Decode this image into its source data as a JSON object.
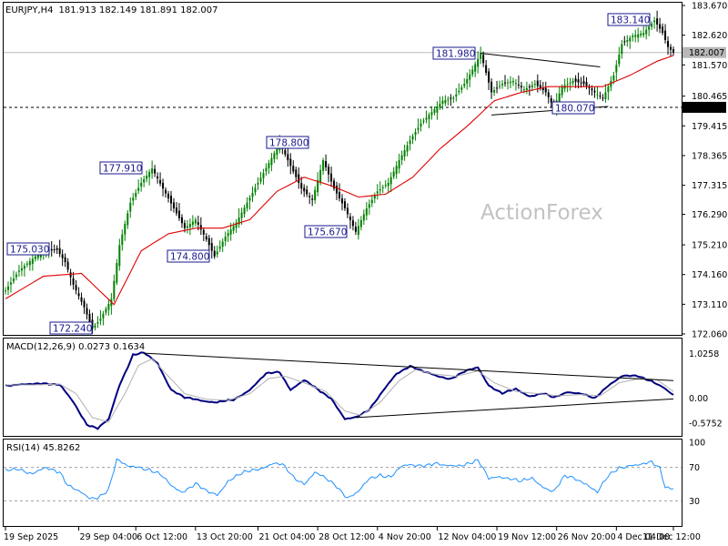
{
  "header": {
    "title": "EURJPY,H4",
    "ohlc": "181.913 182.149 181.891 182.007",
    "macd": "MACD(12,26,9) 0.0273 0.1634",
    "rsi": "RSI(14) 45.8262"
  },
  "watermark": "ActionForex",
  "colors": {
    "bull": "#008000",
    "bear": "#000000",
    "ma": "#e00000",
    "macd": "#000080",
    "signal": "#b0b0b0",
    "rsi": "#1e90ff",
    "label_border": "#1a1a8c"
  },
  "chart_data": [
    {
      "type": "candlestick",
      "title": "EURJPY,H4",
      "yticks": [
        "183.670",
        "182.620",
        "181.570",
        "180.465",
        "179.415",
        "178.365",
        "177.315",
        "176.290",
        "175.210",
        "174.160",
        "173.110",
        "172.060"
      ],
      "ylim": [
        172.06,
        183.67
      ],
      "current_price": "182.007",
      "level_line": "180.070",
      "annotations": [
        {
          "text": "183.140",
          "value": 183.14
        },
        {
          "text": "181.980",
          "value": 181.98
        },
        {
          "text": "180.070",
          "value": 180.07
        },
        {
          "text": "178.800",
          "value": 178.8
        },
        {
          "text": "177.910",
          "value": 177.91
        },
        {
          "text": "175.670",
          "value": 175.67
        },
        {
          "text": "175.030",
          "value": 175.03
        },
        {
          "text": "174.800",
          "value": 174.8
        },
        {
          "text": "172.240",
          "value": 172.24
        }
      ],
      "series_path": [
        [
          0,
          173.6
        ],
        [
          5,
          174.3
        ],
        [
          11,
          174.8
        ],
        [
          16,
          175.0
        ],
        [
          19,
          175.03
        ],
        [
          22,
          174.6
        ],
        [
          25,
          173.8
        ],
        [
          29,
          173.0
        ],
        [
          32,
          172.24
        ],
        [
          35,
          172.6
        ],
        [
          39,
          173.3
        ],
        [
          42,
          175.2
        ],
        [
          46,
          176.7
        ],
        [
          50,
          177.4
        ],
        [
          54,
          177.91
        ],
        [
          58,
          177.2
        ],
        [
          62,
          176.5
        ],
        [
          66,
          175.8
        ],
        [
          70,
          176.1
        ],
        [
          74,
          175.4
        ],
        [
          77,
          174.8
        ],
        [
          81,
          175.5
        ],
        [
          85,
          176.0
        ],
        [
          89,
          176.7
        ],
        [
          93,
          177.4
        ],
        [
          97,
          178.1
        ],
        [
          101,
          178.8
        ],
        [
          105,
          178.0
        ],
        [
          109,
          177.2
        ],
        [
          113,
          176.8
        ],
        [
          117,
          178.2
        ],
        [
          121,
          177.2
        ],
        [
          125,
          176.5
        ],
        [
          129,
          175.67
        ],
        [
          133,
          176.5
        ],
        [
          137,
          177.1
        ],
        [
          141,
          177.4
        ],
        [
          145,
          178.2
        ],
        [
          149,
          178.9
        ],
        [
          153,
          179.5
        ],
        [
          157,
          179.9
        ],
        [
          161,
          180.3
        ],
        [
          165,
          180.4
        ],
        [
          169,
          180.9
        ],
        [
          172,
          181.4
        ],
        [
          175,
          181.98
        ],
        [
          179,
          180.6
        ],
        [
          183,
          180.9
        ],
        [
          187,
          181.0
        ],
        [
          191,
          180.7
        ],
        [
          195,
          180.9
        ],
        [
          199,
          180.6
        ],
        [
          202,
          180.07
        ],
        [
          205,
          180.8
        ],
        [
          209,
          181.0
        ],
        [
          213,
          180.9
        ],
        [
          217,
          180.6
        ],
        [
          220,
          180.4
        ],
        [
          224,
          181.2
        ],
        [
          227,
          182.3
        ],
        [
          231,
          182.6
        ],
        [
          235,
          182.7
        ],
        [
          239,
          183.14
        ],
        [
          242,
          182.7
        ],
        [
          244,
          182.2
        ],
        [
          246,
          182.007
        ]
      ],
      "ma_path": [
        [
          0,
          173.3
        ],
        [
          14,
          174.1
        ],
        [
          28,
          174.2
        ],
        [
          40,
          173.1
        ],
        [
          50,
          175.0
        ],
        [
          60,
          175.6
        ],
        [
          70,
          175.8
        ],
        [
          80,
          175.8
        ],
        [
          90,
          176.1
        ],
        [
          100,
          177.1
        ],
        [
          110,
          177.6
        ],
        [
          120,
          177.3
        ],
        [
          130,
          176.9
        ],
        [
          140,
          177.0
        ],
        [
          150,
          177.6
        ],
        [
          160,
          178.6
        ],
        [
          170,
          179.4
        ],
        [
          180,
          180.3
        ],
        [
          190,
          180.6
        ],
        [
          200,
          180.8
        ],
        [
          210,
          180.8
        ],
        [
          220,
          180.8
        ],
        [
          230,
          181.2
        ],
        [
          240,
          181.7
        ],
        [
          246,
          181.9
        ]
      ],
      "trendlines": [
        {
          "from": [
            175,
            181.98
          ],
          "to": [
            219,
            181.5
          ]
        },
        {
          "from": [
            179,
            179.8
          ],
          "to": [
            222,
            180.1
          ]
        }
      ]
    },
    {
      "type": "line",
      "title": "MACD(12,26,9) 0.0273 0.1634",
      "yticks": [
        "1.0258",
        "0.00",
        "-0.5752"
      ],
      "ylim": [
        -0.85,
        1.2
      ],
      "series": [
        {
          "name": "MACD",
          "path": [
            [
              0,
              0.3
            ],
            [
              8,
              0.3
            ],
            [
              14,
              0.35
            ],
            [
              20,
              0.3
            ],
            [
              25,
              -0.1
            ],
            [
              30,
              -0.6
            ],
            [
              34,
              -0.7
            ],
            [
              38,
              -0.5
            ],
            [
              42,
              0.3
            ],
            [
              47,
              1.0
            ],
            [
              51,
              1.03
            ],
            [
              56,
              0.8
            ],
            [
              61,
              0.2
            ],
            [
              66,
              0.0
            ],
            [
              72,
              -0.05
            ],
            [
              78,
              -0.1
            ],
            [
              84,
              -0.05
            ],
            [
              90,
              0.2
            ],
            [
              96,
              0.55
            ],
            [
              101,
              0.6
            ],
            [
              105,
              0.2
            ],
            [
              110,
              0.4
            ],
            [
              115,
              0.2
            ],
            [
              120,
              0.0
            ],
            [
              125,
              -0.5
            ],
            [
              129,
              -0.45
            ],
            [
              134,
              -0.25
            ],
            [
              139,
              0.15
            ],
            [
              144,
              0.55
            ],
            [
              149,
              0.75
            ],
            [
              154,
              0.6
            ],
            [
              159,
              0.5
            ],
            [
              164,
              0.45
            ],
            [
              169,
              0.6
            ],
            [
              174,
              0.7
            ],
            [
              178,
              0.3
            ],
            [
              183,
              0.1
            ],
            [
              188,
              0.2
            ],
            [
              193,
              0.05
            ],
            [
              198,
              0.1
            ],
            [
              202,
              0.0
            ],
            [
              207,
              0.15
            ],
            [
              212,
              0.1
            ],
            [
              217,
              -0.02
            ],
            [
              222,
              0.3
            ],
            [
              227,
              0.5
            ],
            [
              233,
              0.5
            ],
            [
              238,
              0.4
            ],
            [
              242,
              0.25
            ],
            [
              246,
              0.05
            ]
          ]
        },
        {
          "name": "Signal",
          "path": [
            [
              0,
              0.3
            ],
            [
              10,
              0.3
            ],
            [
              20,
              0.32
            ],
            [
              26,
              0.1
            ],
            [
              32,
              -0.45
            ],
            [
              38,
              -0.55
            ],
            [
              44,
              0.1
            ],
            [
              49,
              0.75
            ],
            [
              54,
              0.9
            ],
            [
              60,
              0.5
            ],
            [
              66,
              0.1
            ],
            [
              74,
              -0.03
            ],
            [
              82,
              -0.05
            ],
            [
              90,
              0.1
            ],
            [
              97,
              0.45
            ],
            [
              103,
              0.5
            ],
            [
              110,
              0.35
            ],
            [
              118,
              0.15
            ],
            [
              125,
              -0.3
            ],
            [
              131,
              -0.4
            ],
            [
              138,
              -0.1
            ],
            [
              145,
              0.4
            ],
            [
              151,
              0.65
            ],
            [
              158,
              0.55
            ],
            [
              166,
              0.5
            ],
            [
              174,
              0.62
            ],
            [
              180,
              0.35
            ],
            [
              188,
              0.15
            ],
            [
              196,
              0.1
            ],
            [
              204,
              0.05
            ],
            [
              212,
              0.08
            ],
            [
              219,
              0.05
            ],
            [
              226,
              0.35
            ],
            [
              234,
              0.45
            ],
            [
              240,
              0.42
            ],
            [
              246,
              0.15
            ]
          ]
        }
      ],
      "trendlines": [
        {
          "from": [
            51,
            1.03
          ],
          "to": [
            246,
            0.4
          ]
        },
        {
          "from": [
            129,
            -0.45
          ],
          "to": [
            246,
            -0.02
          ]
        }
      ]
    },
    {
      "type": "line",
      "title": "RSI(14) 45.8262",
      "yticks": [
        "100",
        "70",
        "30"
      ],
      "ylim": [
        0,
        100
      ],
      "levels": [
        70,
        30
      ],
      "series": [
        {
          "name": "RSI",
          "path": [
            [
              0,
              65
            ],
            [
              5,
              70
            ],
            [
              10,
              62
            ],
            [
              15,
              68
            ],
            [
              20,
              66
            ],
            [
              23,
              50
            ],
            [
              27,
              40
            ],
            [
              31,
              32
            ],
            [
              34,
              35
            ],
            [
              38,
              45
            ],
            [
              41,
              78
            ],
            [
              45,
              70
            ],
            [
              49,
              72
            ],
            [
              53,
              68
            ],
            [
              57,
              60
            ],
            [
              61,
              48
            ],
            [
              65,
              42
            ],
            [
              70,
              50
            ],
            [
              74,
              40
            ],
            [
              78,
              38
            ],
            [
              82,
              55
            ],
            [
              86,
              60
            ],
            [
              90,
              65
            ],
            [
              94,
              70
            ],
            [
              98,
              75
            ],
            [
              102,
              72
            ],
            [
              106,
              58
            ],
            [
              110,
              52
            ],
            [
              114,
              64
            ],
            [
              118,
              55
            ],
            [
              122,
              48
            ],
            [
              126,
              35
            ],
            [
              130,
              40
            ],
            [
              134,
              55
            ],
            [
              138,
              62
            ],
            [
              142,
              60
            ],
            [
              146,
              70
            ],
            [
              150,
              72
            ],
            [
              154,
              74
            ],
            [
              158,
              75
            ],
            [
              162,
              70
            ],
            [
              166,
              72
            ],
            [
              170,
              76
            ],
            [
              174,
              78
            ],
            [
              178,
              55
            ],
            [
              182,
              60
            ],
            [
              186,
              58
            ],
            [
              190,
              52
            ],
            [
              194,
              56
            ],
            [
              198,
              48
            ],
            [
              202,
              42
            ],
            [
              206,
              58
            ],
            [
              210,
              56
            ],
            [
              214,
              52
            ],
            [
              218,
              40
            ],
            [
              222,
              58
            ],
            [
              226,
              70
            ],
            [
              230,
              74
            ],
            [
              234,
              72
            ],
            [
              238,
              75
            ],
            [
              241,
              70
            ],
            [
              243,
              48
            ],
            [
              246,
              45.8
            ]
          ]
        }
      ]
    }
  ],
  "xaxis": {
    "labels": [
      {
        "text": "19 Sep 2025",
        "index": 0
      },
      {
        "text": "29 Sep 04:00",
        "index": 27
      },
      {
        "text": "6 Oct 12:00",
        "index": 48
      },
      {
        "text": "13 Oct 20:00",
        "index": 70
      },
      {
        "text": "21 Oct 04:00",
        "index": 93
      },
      {
        "text": "28 Oct 12:00",
        "index": 115
      },
      {
        "text": "4 Nov 20:00",
        "index": 137
      },
      {
        "text": "12 Nov 04:00",
        "index": 159
      },
      {
        "text": "19 Nov 12:00",
        "index": 181
      },
      {
        "text": "26 Nov 20:00",
        "index": 203
      },
      {
        "text": "4 Dec 04:00",
        "index": 225
      },
      {
        "text": "11 Dec 12:00",
        "index": 246
      }
    ]
  }
}
